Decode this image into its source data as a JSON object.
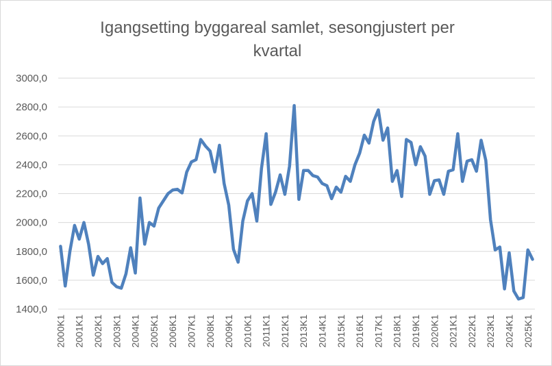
{
  "chart_data": {
    "type": "line",
    "title_line1": "Igangsetting byggareal samlet, sesongjustert per",
    "title_line2": "kvartal",
    "xlabel": "",
    "ylabel": "",
    "ylim": [
      1400,
      3000
    ],
    "y_ticks": [
      "1400,0",
      "1600,0",
      "1800,0",
      "2000,0",
      "2200,0",
      "2400,0",
      "2600,0",
      "2800,0",
      "3000,0"
    ],
    "grid": true,
    "line_color": "#4f81bd",
    "x_tick_labels": [
      "2000K1",
      "2001K1",
      "2002K1",
      "2003K1",
      "2004K1",
      "2005K1",
      "2006K1",
      "2007K1",
      "2008K1",
      "2009K1",
      "2010K1",
      "2011K1",
      "2012K1",
      "2013K1",
      "2014K1",
      "2015K1",
      "2016K1",
      "2017K1",
      "2018K1",
      "2019K1",
      "2020K1",
      "2021K1",
      "2022K1",
      "2023K1",
      "2024K1",
      "2025K1"
    ],
    "series": [
      {
        "values": [
          1835,
          1560,
          1800,
          1980,
          1885,
          2000,
          1850,
          1635,
          1765,
          1715,
          1750,
          1585,
          1555,
          1545,
          1645,
          1825,
          1650,
          2170,
          1850,
          2000,
          1975,
          2100,
          2150,
          2200,
          2225,
          2230,
          2205,
          2350,
          2420,
          2435,
          2575,
          2530,
          2495,
          2350,
          2535,
          2270,
          2120,
          1815,
          1725,
          2010,
          2150,
          2200,
          2010,
          2375,
          2615,
          2125,
          2210,
          2330,
          2195,
          2390,
          2810,
          2160,
          2360,
          2360,
          2325,
          2315,
          2270,
          2255,
          2165,
          2245,
          2210,
          2320,
          2285,
          2400,
          2480,
          2605,
          2550,
          2700,
          2780,
          2570,
          2655,
          2285,
          2360,
          2180,
          2575,
          2555,
          2400,
          2525,
          2460,
          2195,
          2290,
          2295,
          2195,
          2355,
          2365,
          2615,
          2285,
          2425,
          2435,
          2355,
          2570,
          2430,
          2020,
          1810,
          1830,
          1540,
          1790,
          1525,
          1470,
          1480,
          1810,
          1745
        ]
      }
    ]
  }
}
